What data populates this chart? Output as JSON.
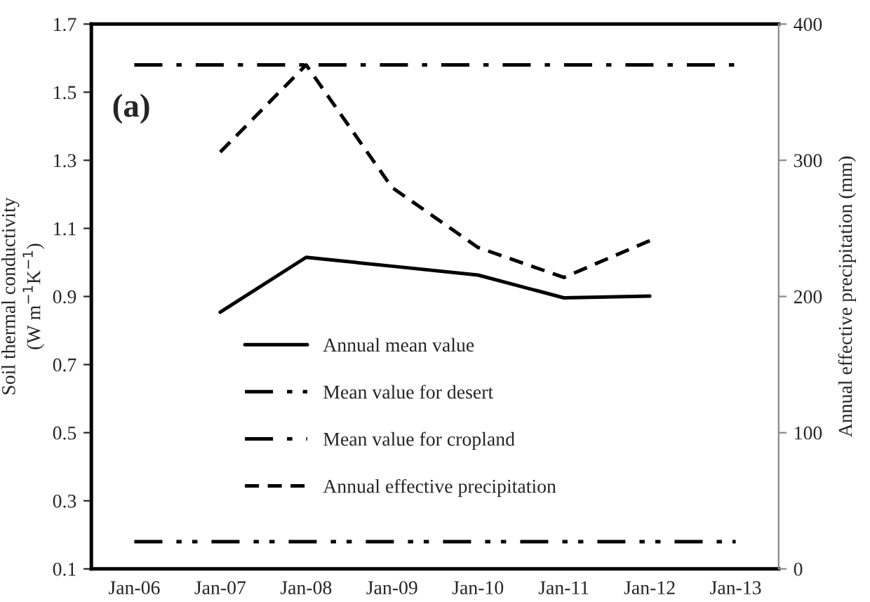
{
  "chart_data": {
    "type": "line",
    "categories": [
      "Jan-06",
      "Jan-07",
      "Jan-08",
      "Jan-09",
      "Jan-10",
      "Jan-11",
      "Jan-12",
      "Jan-13"
    ],
    "series": [
      {
        "name": "Annual mean value",
        "color": "#000000",
        "line_style": "solid",
        "values": [
          null,
          0.854,
          1.015,
          0.989,
          0.963,
          0.896,
          0.901,
          null
        ]
      },
      {
        "name": "Mean value for desert",
        "color": "#000000",
        "line_style": "dashdotdot",
        "values": [
          0.18,
          0.18,
          0.18,
          0.18,
          0.18,
          0.18,
          0.18,
          0.18
        ]
      },
      {
        "name": "Mean value for cropland",
        "color": "#000000",
        "line_style": "dashdot",
        "values": [
          1.58,
          1.58,
          1.58,
          1.58,
          1.58,
          1.58,
          1.58,
          1.58
        ]
      },
      {
        "name": "Annual effective precipitation",
        "color": "#000000",
        "line_style": "dashed",
        "axis": "y2",
        "values": [
          null,
          306,
          370,
          280,
          236,
          214,
          241,
          null
        ]
      }
    ],
    "ylabel": "Soil thermal conductivity\n(W m$^{−1}$K$^{−1}$)",
    "y2label": "Annual effective precipitation (mm)",
    "ylim": [
      0.1,
      1.7
    ],
    "yticks": [
      0.1,
      0.3,
      0.5,
      0.7,
      0.9,
      1.1,
      1.3,
      1.5,
      1.7
    ],
    "y2lim": [
      0,
      400
    ],
    "y2ticks": [
      0,
      100,
      200,
      300,
      400
    ],
    "annotations": [
      "(a)"
    ],
    "legend": "bottom",
    "grid": false,
    "marker": "none"
  }
}
